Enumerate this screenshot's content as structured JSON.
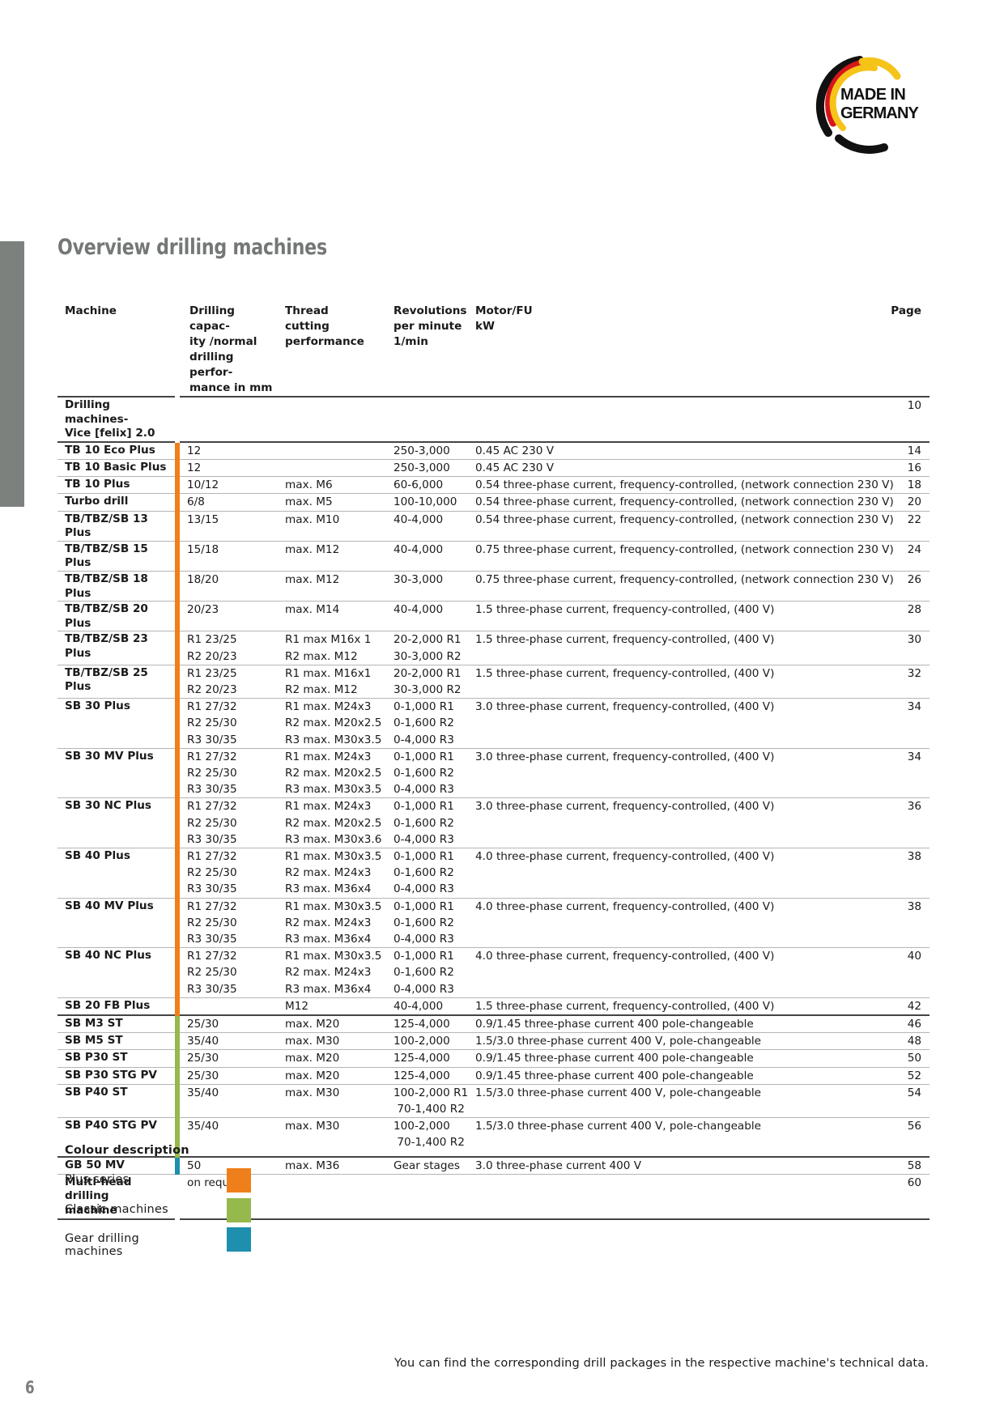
{
  "logo": {
    "line1": "MADE IN",
    "line2": "GERMANY"
  },
  "title": "Overview drilling machines",
  "headers": {
    "machine": "Machine",
    "capacity": "Drilling capac-\nity /normal\ndrilling perfor-\nmance in mm",
    "thread": "Thread\ncutting\nperformance",
    "revolutions": "Revolutions\nper minute\n1/min",
    "motor": "Motor/FU\nkW",
    "page": "Page"
  },
  "rows": [
    {
      "name": "Drilling machines-\nVice [felix] 2.0",
      "cap": "",
      "thread": "",
      "rev": "",
      "motor": "",
      "page": "10",
      "series": "none",
      "group_end": true
    },
    {
      "name": "TB 10 Eco Plus",
      "cap": "12",
      "thread": "",
      "rev": "250-3,000",
      "motor": "0.45 AC 230 V",
      "page": "14",
      "series": "plus"
    },
    {
      "name": "TB 10 Basic Plus",
      "cap": "12",
      "thread": "",
      "rev": "250-3,000",
      "motor": "0.45 AC 230 V",
      "page": "16",
      "series": "plus"
    },
    {
      "name": "TB 10 Plus",
      "cap": "10/12",
      "thread": "max. M6",
      "rev": "60-6,000",
      "motor": "0.54 three-phase current, frequency-controlled, (network connection 230 V)",
      "page": "18",
      "series": "plus"
    },
    {
      "name": "Turbo drill",
      "cap": "6/8",
      "thread": "max. M5",
      "rev": "100-10,000",
      "motor": "0.54 three-phase current, frequency-controlled, (network connection 230 V)",
      "page": "20",
      "series": "plus"
    },
    {
      "name": "TB/TBZ/SB 13 Plus",
      "cap": "13/15",
      "thread": "max. M10",
      "rev": "40-4,000",
      "motor": "0.54 three-phase current, frequency-controlled, (network connection 230 V)",
      "page": "22",
      "series": "plus"
    },
    {
      "name": "TB/TBZ/SB 15 Plus",
      "cap": "15/18",
      "thread": "max. M12",
      "rev": "40-4,000",
      "motor": "0.75 three-phase current, frequency-controlled, (network connection 230 V)",
      "page": "24",
      "series": "plus"
    },
    {
      "name": "TB/TBZ/SB 18 Plus",
      "cap": "18/20",
      "thread": "max. M12",
      "rev": "30-3,000",
      "motor": "0.75 three-phase current, frequency-controlled, (network connection 230 V)",
      "page": "26",
      "series": "plus"
    },
    {
      "name": "TB/TBZ/SB 20 Plus",
      "cap": "20/23",
      "thread": "max. M14",
      "rev": "40-4,000",
      "motor": "1.5 three-phase current, frequency-controlled, (400 V)",
      "page": "28",
      "series": "plus"
    },
    {
      "name": "TB/TBZ/SB 23 Plus",
      "cap": "R1 23/25\nR2 20/23",
      "thread": "R1 max M16x 1\nR2 max. M12",
      "rev": "20-2,000 R1\n30-3,000 R2",
      "motor": "1.5 three-phase current, frequency-controlled, (400 V)",
      "page": "30",
      "series": "plus"
    },
    {
      "name": "TB/TBZ/SB 25 Plus",
      "cap": "R1 23/25\nR2 20/23",
      "thread": "R1 max. M16x1\nR2 max. M12",
      "rev": "20-2,000 R1\n30-3,000 R2",
      "motor": "1.5 three-phase current, frequency-controlled, (400 V)",
      "page": "32",
      "series": "plus"
    },
    {
      "name": "SB 30 Plus",
      "cap": "R1 27/32\nR2 25/30\nR3 30/35",
      "thread": "R1 max. M24x3\nR2 max. M20x2.5\nR3 max. M30x3.5",
      "rev": "0-1,000 R1\n0-1,600 R2\n0-4,000 R3",
      "motor": "3.0 three-phase current, frequency-controlled, (400 V)",
      "page": "34",
      "series": "plus"
    },
    {
      "name": "SB 30 MV Plus",
      "cap": "R1 27/32\nR2 25/30\nR3 30/35",
      "thread": "R1 max. M24x3\nR2 max. M20x2.5\nR3 max. M30x3.5",
      "rev": "0-1,000 R1\n0-1,600 R2\n0-4,000 R3",
      "motor": "3.0 three-phase current, frequency-controlled, (400 V)",
      "page": "34",
      "series": "plus"
    },
    {
      "name": "SB 30 NC Plus",
      "cap": "R1 27/32\nR2 25/30\nR3 30/35",
      "thread": "R1 max. M24x3\nR2 max. M20x2.5\nR3 max. M30x3.6",
      "rev": "0-1,000 R1\n0-1,600 R2\n0-4,000 R3",
      "motor": "3.0 three-phase current, frequency-controlled, (400 V)",
      "page": "36",
      "series": "plus"
    },
    {
      "name": "SB 40 Plus",
      "cap": "R1 27/32\nR2 25/30\nR3 30/35",
      "thread": "R1 max. M30x3.5\nR2 max. M24x3\nR3 max. M36x4",
      "rev": "0-1,000 R1\n0-1,600 R2\n0-4,000 R3",
      "motor": "4.0 three-phase current, frequency-controlled, (400 V)",
      "page": "38",
      "series": "plus"
    },
    {
      "name": "SB 40 MV Plus",
      "cap": "R1 27/32\nR2 25/30\nR3 30/35",
      "thread": "R1 max. M30x3.5\nR2 max. M24x3\nR3 max. M36x4",
      "rev": "0-1,000 R1\n0-1,600 R2\n0-4,000 R3",
      "motor": "4.0 three-phase current, frequency-controlled, (400 V)",
      "page": "38",
      "series": "plus"
    },
    {
      "name": "SB 40 NC Plus",
      "cap": "R1 27/32\nR2 25/30\nR3 30/35",
      "thread": "R1 max. M30x3.5\nR2 max. M24x3\nR3 max. M36x4",
      "rev": "0-1,000 R1\n0-1,600 R2\n0-4,000 R3",
      "motor": "4.0 three-phase current, frequency-controlled, (400 V)",
      "page": "40",
      "series": "plus"
    },
    {
      "name": "SB 20 FB Plus",
      "cap": "",
      "thread": "M12",
      "rev": "40-4,000",
      "motor": "1.5 three-phase current, frequency-controlled, (400 V)",
      "page": "42",
      "series": "plus",
      "group_end": true
    },
    {
      "name": "SB M3 ST",
      "cap": "25/30",
      "thread": "max. M20",
      "rev": "125-4,000",
      "motor": "0.9/1.45 three-phase current 400 pole-changeable",
      "page": "46",
      "series": "classic"
    },
    {
      "name": "SB M5 ST",
      "cap": "35/40",
      "thread": "max. M30",
      "rev": "100-2,000",
      "motor": "1.5/3.0 three-phase current 400 V, pole-changeable",
      "page": "48",
      "series": "classic"
    },
    {
      "name": "SB P30 ST",
      "cap": "25/30",
      "thread": "max. M20",
      "rev": "125-4,000",
      "motor": "0.9/1.45 three-phase current 400 pole-changeable",
      "page": "50",
      "series": "classic"
    },
    {
      "name": "SB P30 STG PV",
      "cap": "25/30",
      "thread": "max. M20",
      "rev": "125-4,000",
      "motor": "0.9/1.45 three-phase current 400 pole-changeable",
      "page": "52",
      "series": "classic"
    },
    {
      "name": "SB P40 ST",
      "cap": "35/40",
      "thread": "max. M30",
      "rev": "100-2,000 R1\n 70-1,400 R2",
      "motor": "1.5/3.0 three-phase current 400 V, pole-changeable",
      "page": "54",
      "series": "classic"
    },
    {
      "name": "SB P40 STG PV",
      "cap": "35/40",
      "thread": "max. M30",
      "rev": "100-2,000\n 70-1,400 R2",
      "motor": "1.5/3.0 three-phase current 400 V, pole-changeable",
      "page": "56",
      "series": "classic",
      "group_end": true,
      "extra_space": true
    },
    {
      "name": "GB 50 MV",
      "cap": "50",
      "thread": "max. M36",
      "rev": "Gear stages",
      "motor": "3.0 three-phase current 400 V",
      "page": "58",
      "series": "gear"
    },
    {
      "name": "Multi-head drilling\nmachine",
      "cap": "on request",
      "thread": "",
      "rev": "",
      "motor": "",
      "page": "60",
      "series": "none",
      "last": true
    }
  ],
  "legend": {
    "title": "Colour description",
    "items": [
      {
        "label": "Plus series",
        "color": "#ef7f1a"
      },
      {
        "label": "Classic machines",
        "color": "#95b94c"
      },
      {
        "label": "Gear drilling machines",
        "color": "#1e8fae"
      }
    ]
  },
  "footnote": "You can find the corresponding drill packages in the respective machine's technical data.",
  "page_number": "6",
  "colors": {
    "plus": "#ef7f1a",
    "classic": "#95b94c",
    "gear": "#1e8fae",
    "sidebar": "#7d817e"
  }
}
